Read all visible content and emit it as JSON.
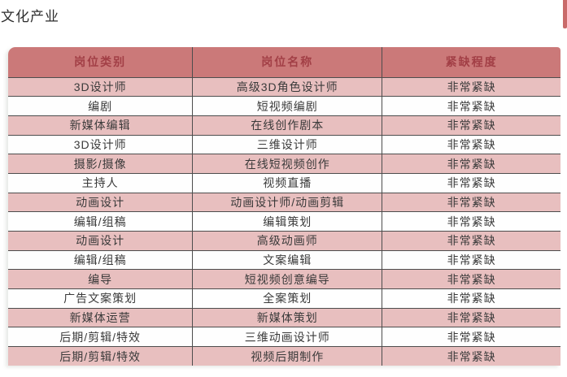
{
  "page": {
    "title": "文化产业"
  },
  "table": {
    "headers": [
      "岗位类别",
      "岗位名称",
      "紧缺程度"
    ],
    "rows": [
      [
        "3D设计师",
        "高级3D角色设计师",
        "非常紧缺"
      ],
      [
        "编剧",
        "短视频编剧",
        "非常紧缺"
      ],
      [
        "新媒体编辑",
        "在线创作剧本",
        "非常紧缺"
      ],
      [
        "3D设计师",
        "三维设计师",
        "非常紧缺"
      ],
      [
        "摄影/摄像",
        "在线短视频创作",
        "非常紧缺"
      ],
      [
        "主持人",
        "视频直播",
        "非常紧缺"
      ],
      [
        "动画设计",
        "动画设计师/动画剪辑",
        "非常紧缺"
      ],
      [
        "编辑/组稿",
        "编辑策划",
        "非常紧缺"
      ],
      [
        "动画设计",
        "高级动画师",
        "非常紧缺"
      ],
      [
        "编辑/组稿",
        "文案编辑",
        "非常紧缺"
      ],
      [
        "编导",
        "短视频创意编导",
        "非常紧缺"
      ],
      [
        "广告文案策划",
        "全案策划",
        "非常紧缺"
      ],
      [
        "新媒体运营",
        "新媒体策划",
        "非常紧缺"
      ],
      [
        "后期/剪辑/特效",
        "三维动画设计师",
        "非常紧缺"
      ],
      [
        "后期/剪辑/特效",
        "视频后期制作",
        "非常紧缺"
      ]
    ]
  },
  "colors": {
    "header_bg": "#cb7979",
    "header_text": "#a23f46",
    "row_pink": "#e8bfbf",
    "row_white": "#fefefe",
    "border_color": "#4d4d4d",
    "cell_text": "#3a3a3a",
    "title_text": "#2d2d2d",
    "fragment_red": "#c96a6a"
  }
}
